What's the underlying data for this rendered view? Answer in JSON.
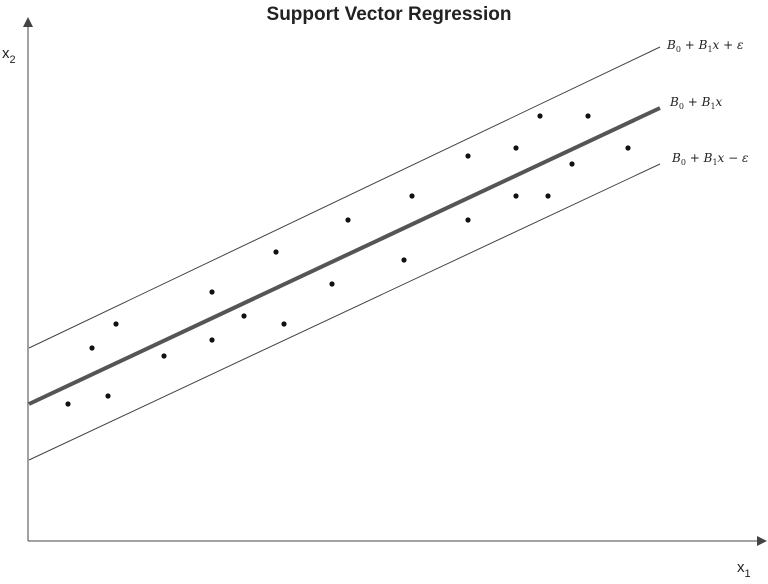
{
  "title": "Support Vector Regression",
  "axes": {
    "x_label": {
      "base": "x",
      "sub": "1"
    },
    "y_label": {
      "base": "x",
      "sub": "2"
    }
  },
  "lines": {
    "upper": {
      "parts": [
        "B",
        "0",
        " + B",
        "1",
        "x + ε"
      ]
    },
    "center": {
      "parts": [
        "B",
        "0",
        " + B",
        "1",
        "x"
      ]
    },
    "lower": {
      "parts": [
        "B",
        "0",
        " + B",
        "1",
        "x − ε"
      ]
    }
  },
  "colors": {
    "axis": "#444444",
    "regression_line": "#555555",
    "margin_line": "#444444",
    "points": "#111111"
  }
}
